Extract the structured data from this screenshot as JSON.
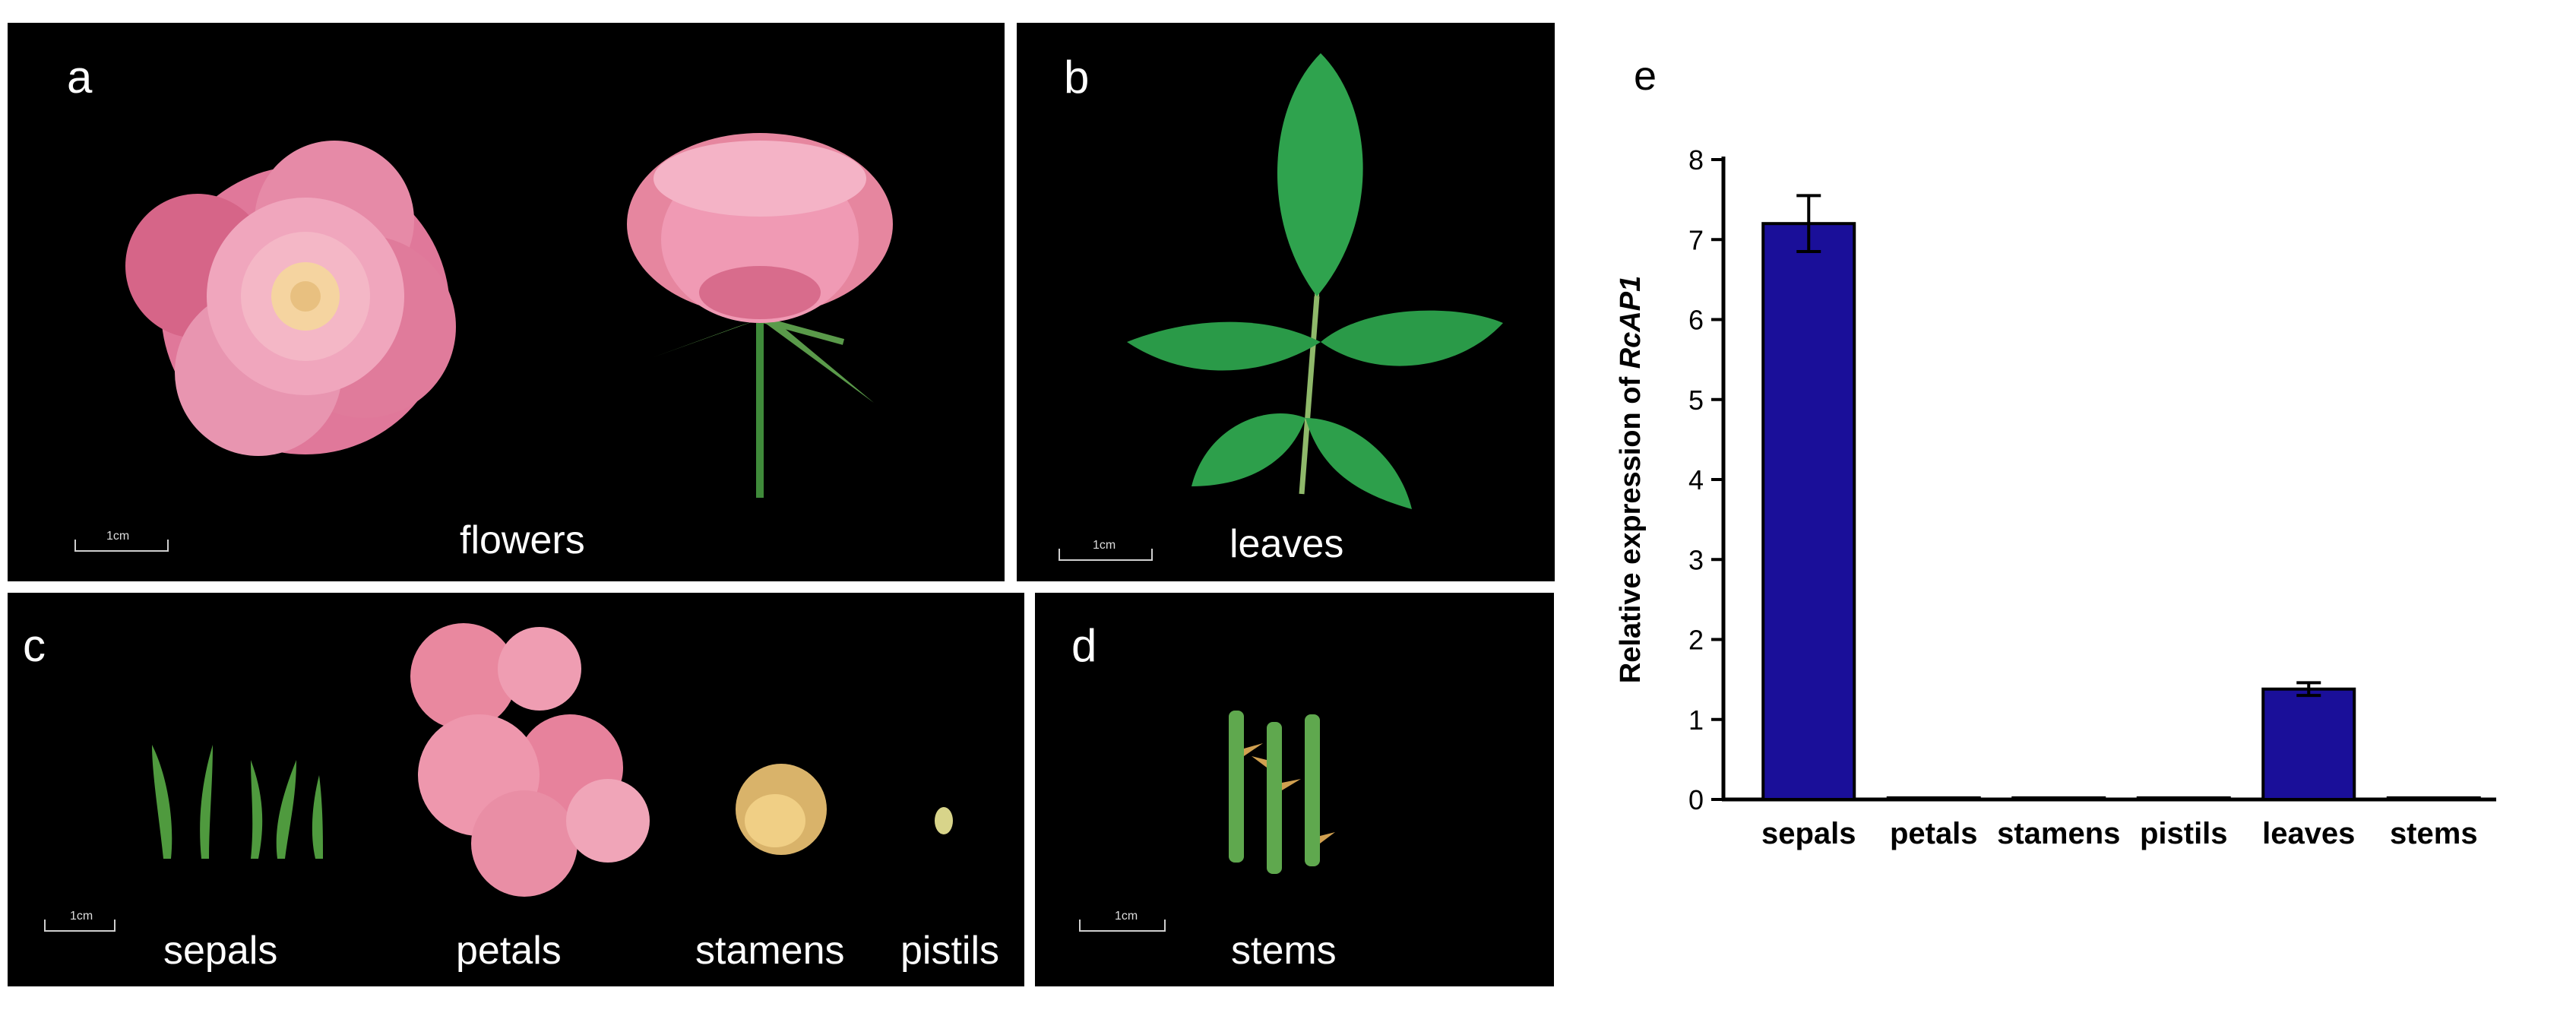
{
  "panels": {
    "a": {
      "letter": "a",
      "caption": "flowers",
      "scale": "1cm"
    },
    "b": {
      "letter": "b",
      "caption": "leaves",
      "scale": "1cm"
    },
    "c": {
      "letter": "c",
      "captions": [
        "sepals",
        "petals",
        "stamens",
        "pistils"
      ],
      "scale": "1cm"
    },
    "d": {
      "letter": "d",
      "caption": "stems",
      "scale": "1cm"
    }
  },
  "chart_data": {
    "type": "bar",
    "panel_letter": "e",
    "categories": [
      "sepals",
      "petals",
      "stamens",
      "pistils",
      "leaves",
      "stems"
    ],
    "values": [
      7.2,
      0.02,
      0.02,
      0.02,
      1.38,
      0.02
    ],
    "errors": [
      0.35,
      0,
      0,
      0,
      0.08,
      0
    ],
    "ylabel_prefix": "Relative expression of ",
    "ylabel_gene": "RcAP1",
    "ylim": [
      0,
      8
    ],
    "yticks": [
      "0",
      "1",
      "2",
      "3",
      "4",
      "5",
      "6",
      "7",
      "8"
    ],
    "bar_color": "#1a0f99",
    "grid": false
  }
}
